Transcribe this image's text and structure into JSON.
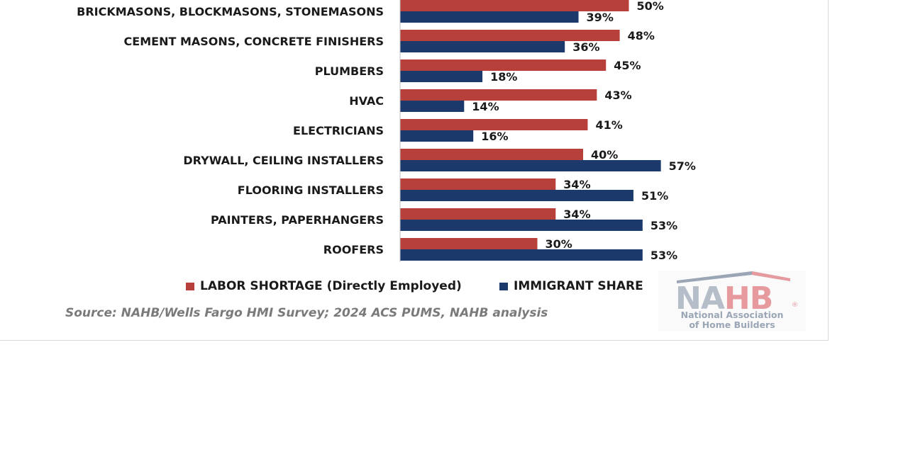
{
  "chart_data": {
    "type": "bar",
    "orientation": "horizontal",
    "categories": [
      "BRICKMASONS, BLOCKMASONS, STONEMASONS",
      "CEMENT MASONS, CONCRETE FINISHERS",
      "PLUMBERS",
      "HVAC",
      "ELECTRICIANS",
      "DRYWALL, CEILING INSTALLERS",
      "FLOORING INSTALLERS",
      "PAINTERS, PAPERHANGERS",
      "ROOFERS"
    ],
    "series": [
      {
        "name": "LABOR SHORTAGE (Directly Employed)",
        "color": "#b8403a",
        "values": [
          50,
          48,
          45,
          43,
          41,
          40,
          34,
          34,
          30
        ],
        "labels": [
          "50%",
          "48%",
          "45%",
          "43%",
          "41%",
          "40%",
          "34%",
          "34%",
          "30%"
        ]
      },
      {
        "name": "IMMIGRANT SHARE",
        "color": "#1b3a6b",
        "values": [
          39,
          36,
          18,
          14,
          16,
          57,
          51,
          53,
          53
        ],
        "labels": [
          "39%",
          "36%",
          "18%",
          "14%",
          "16%",
          "57%",
          "51%",
          "53%",
          "53%"
        ]
      }
    ],
    "unit": "%",
    "grid": false,
    "legend_position": "bottom"
  },
  "source": "Source: NAHB/Wells Fargo HMI Survey; 2024 ACS PUMS, NAHB analysis",
  "logo": {
    "name": "NAHB",
    "subtitle_line1": "National Association",
    "subtitle_line2": "of Home Builders",
    "registered_mark": "®"
  }
}
